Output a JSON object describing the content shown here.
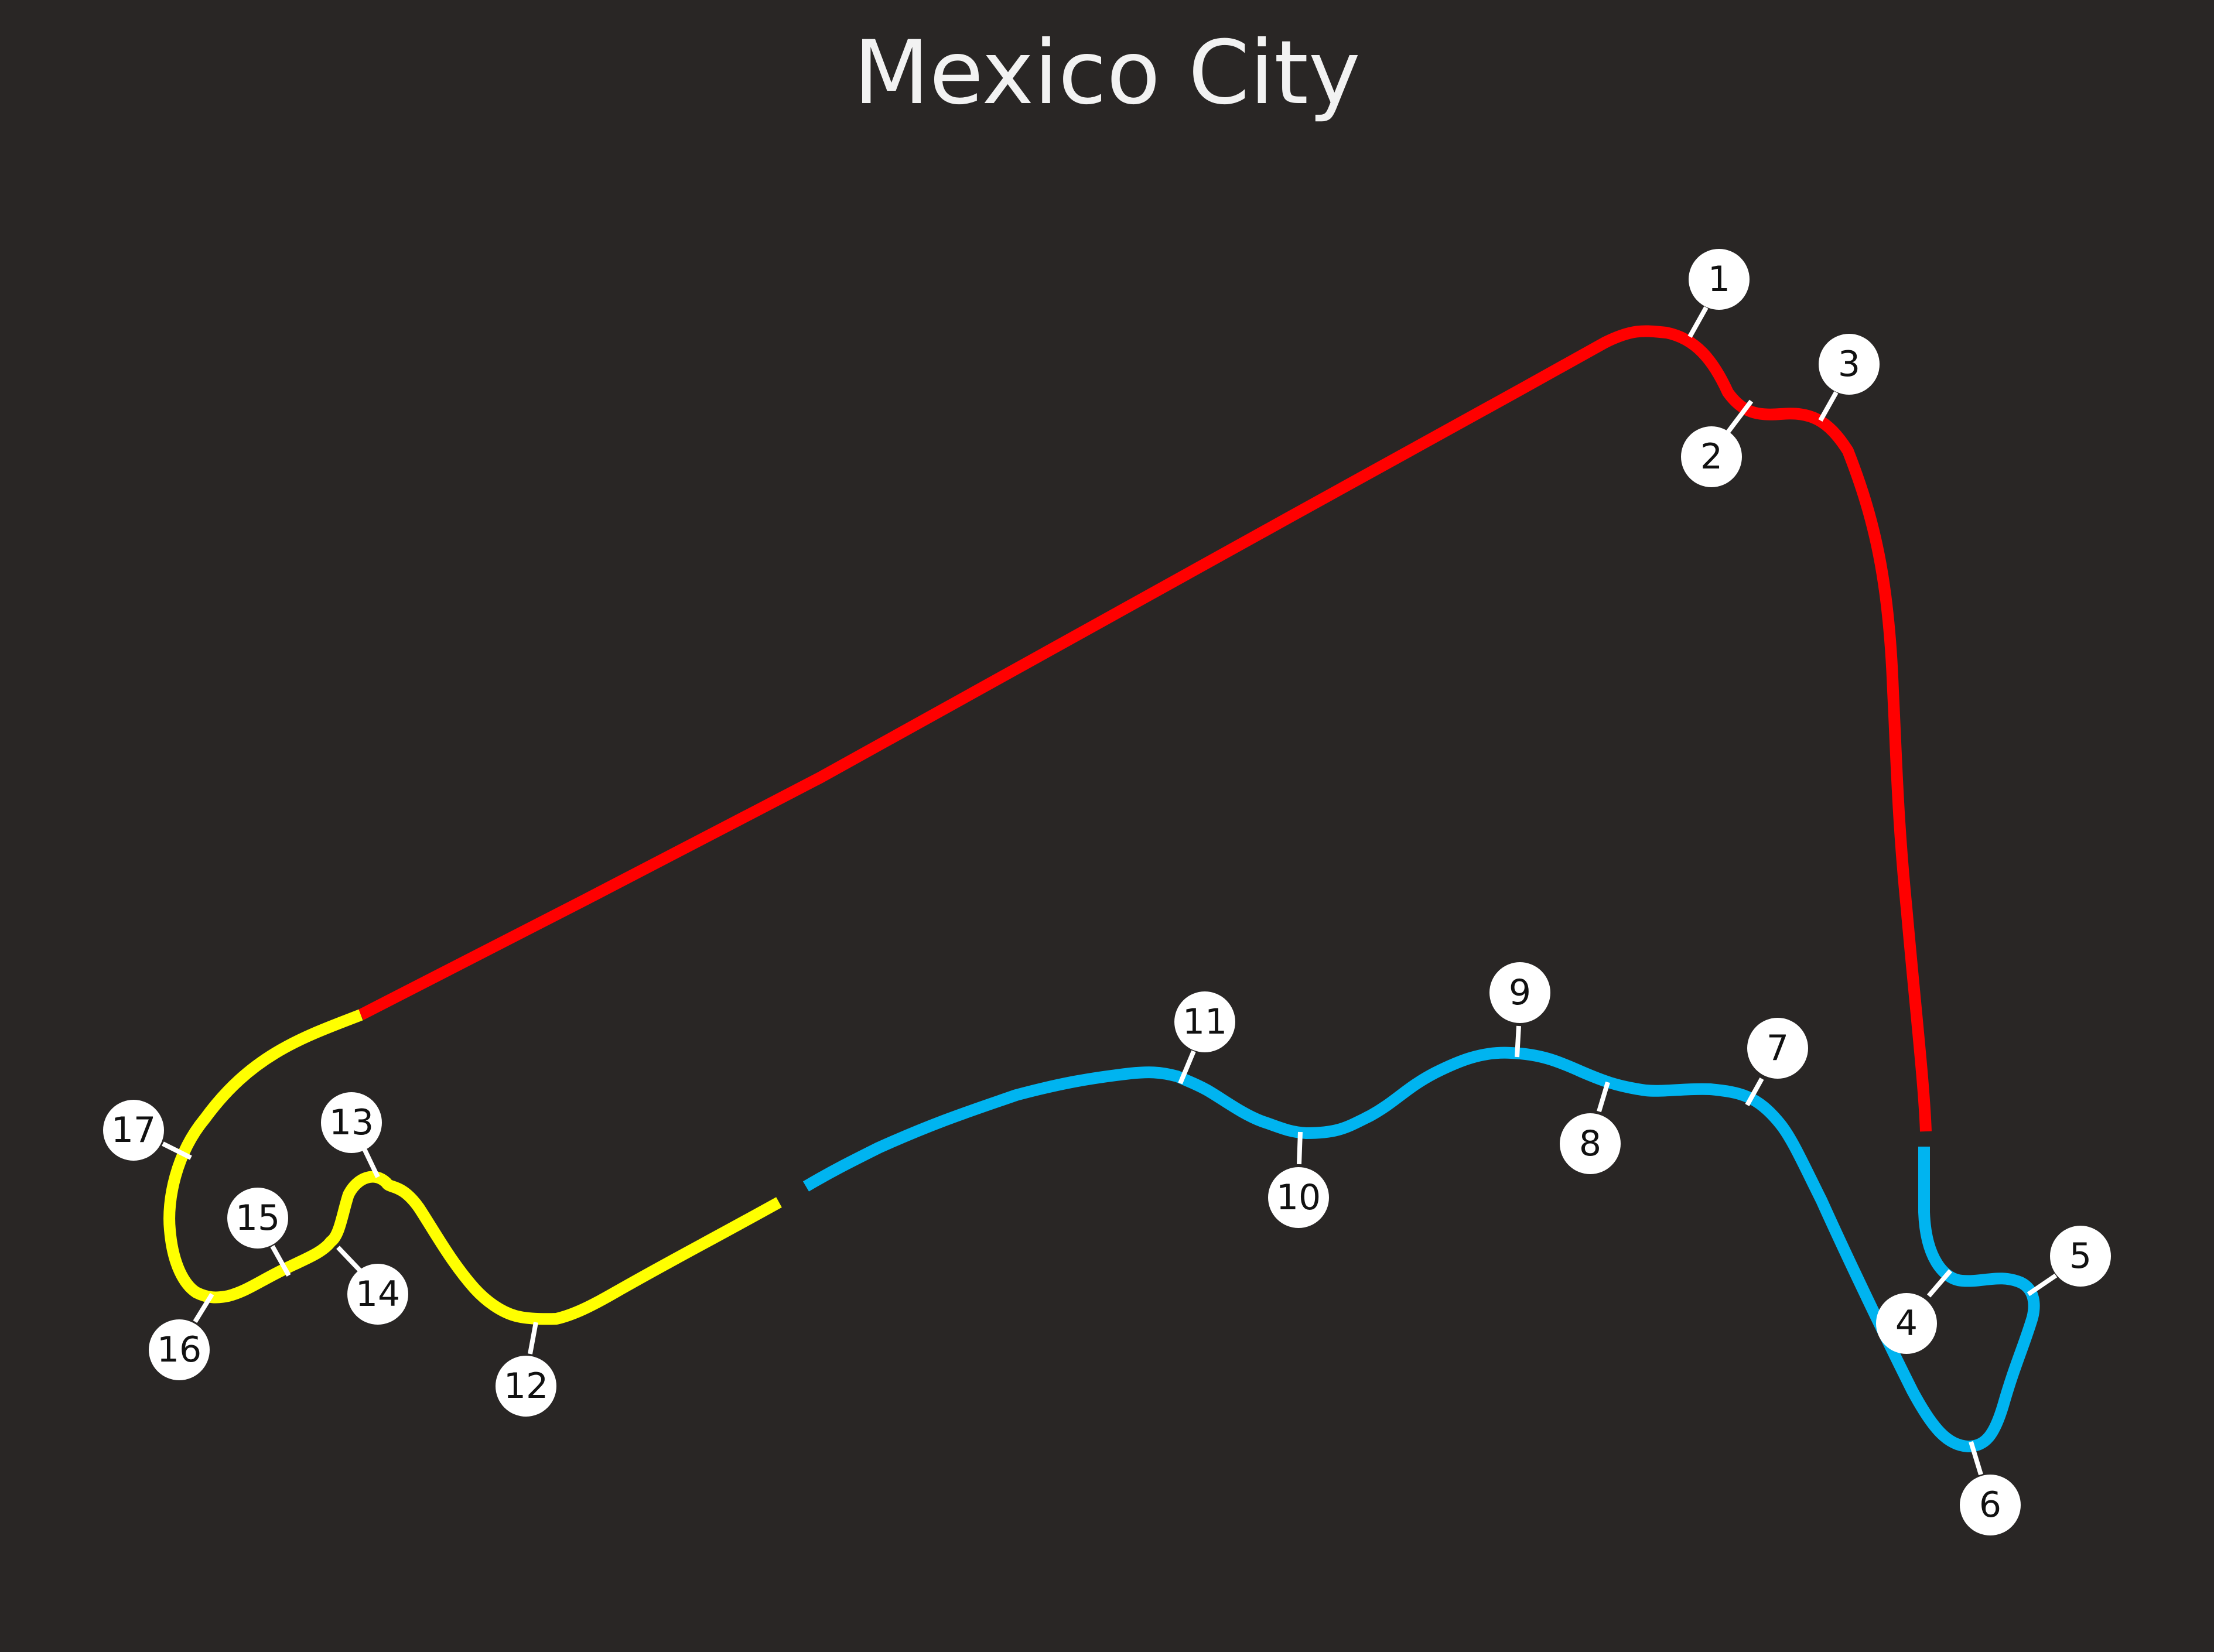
{
  "title": "Mexico City",
  "colors": {
    "background": "#292625",
    "sector_1": "#ff0000",
    "sector_2": "#00b4f0",
    "sector_3": "#ffff00",
    "marker": "#ffffff",
    "title_text": "#f2f2f2"
  },
  "sectors": [
    {
      "id": "sector-1",
      "color_key": "sector_1"
    },
    {
      "id": "sector-2",
      "color_key": "sector_2"
    },
    {
      "id": "sector-3",
      "color_key": "sector_3"
    }
  ],
  "corners": [
    "1",
    "2",
    "3",
    "4",
    "5",
    "6",
    "7",
    "8",
    "9",
    "10",
    "11",
    "12",
    "13",
    "14",
    "15",
    "16",
    "17"
  ]
}
